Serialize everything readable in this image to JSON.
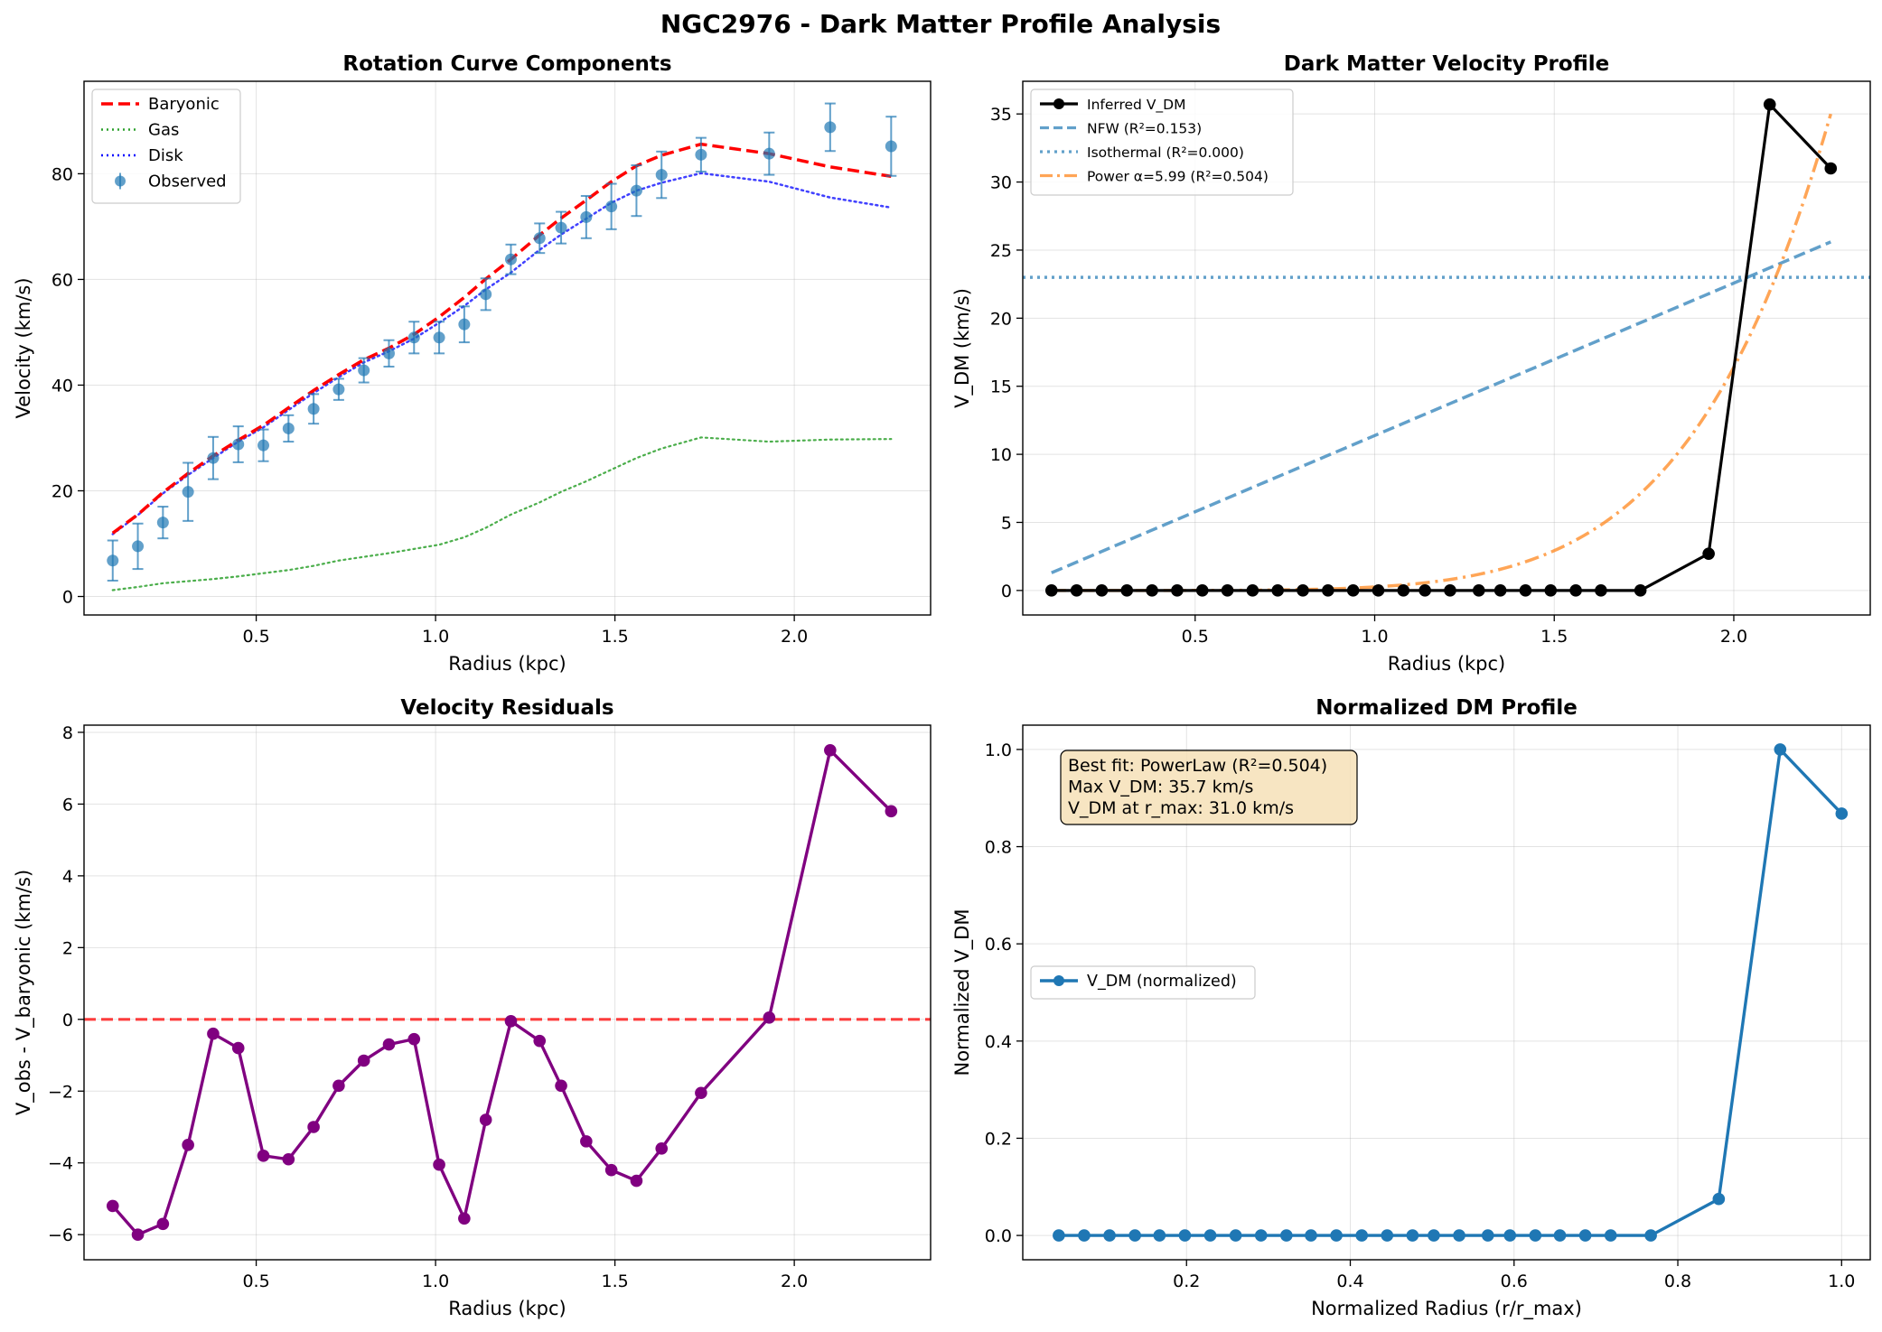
{
  "figure_title": "NGC2976 - Dark Matter Profile Analysis",
  "colors": {
    "observed": "#1f77b4",
    "baryonic": "#ff0000",
    "gas": "#2ca02c",
    "disk": "#0000ff",
    "inferred": "#000000",
    "nfw": "#1f77b4",
    "isothermal": "#1f77b4",
    "power": "#ff7f0e",
    "residual": "#800080",
    "zero_line": "#ff0000",
    "normalized": "#1f77b4",
    "annotation_bg": "#f5deb3"
  },
  "chart_data": [
    {
      "id": "rotation",
      "type": "line",
      "title": "Rotation Curve Components",
      "xlabel": "Radius (kpc)",
      "ylabel": "Velocity (km/s)",
      "xlim": [
        0.02,
        2.38
      ],
      "ylim": [
        -3.5,
        97.5
      ],
      "xticks": [
        0.5,
        1.0,
        1.5,
        2.0
      ],
      "xtick_labels": [
        "0.5",
        "1.0",
        "1.5",
        "2.0"
      ],
      "yticks": [
        0,
        20,
        40,
        60,
        80
      ],
      "ytick_labels": [
        "0",
        "20",
        "40",
        "60",
        "80"
      ],
      "grid": true,
      "legend_position": "upper-left",
      "legend": [
        "Baryonic",
        "Gas",
        "Disk",
        "Observed"
      ],
      "x": [
        0.1,
        0.17,
        0.24,
        0.31,
        0.38,
        0.45,
        0.52,
        0.59,
        0.66,
        0.73,
        0.8,
        0.87,
        0.94,
        1.01,
        1.08,
        1.14,
        1.21,
        1.29,
        1.35,
        1.42,
        1.49,
        1.56,
        1.63,
        1.74,
        1.93,
        2.1,
        2.27
      ],
      "series": [
        {
          "name": "Observed",
          "style": "errorbar",
          "values": [
            6.8,
            9.5,
            14.0,
            19.8,
            26.2,
            28.8,
            28.6,
            31.8,
            35.5,
            39.2,
            42.8,
            46.0,
            49.0,
            49.0,
            51.5,
            57.2,
            63.8,
            67.8,
            69.8,
            71.8,
            73.8,
            76.8,
            79.8,
            83.6,
            83.8,
            88.8,
            85.2
          ],
          "errors": [
            3.8,
            4.3,
            3.0,
            5.5,
            4.0,
            3.4,
            3.0,
            2.5,
            2.8,
            2.0,
            2.3,
            2.5,
            3.0,
            3.0,
            3.4,
            3.0,
            2.8,
            2.8,
            3.0,
            4.0,
            4.3,
            4.8,
            4.4,
            3.2,
            4.0,
            4.5,
            5.6
          ]
        },
        {
          "name": "Baryonic",
          "style": "dashed",
          "values": [
            12.0,
            15.5,
            19.7,
            23.3,
            26.6,
            29.6,
            32.4,
            35.7,
            39.0,
            42.0,
            44.8,
            47.0,
            49.6,
            52.9,
            56.6,
            60.1,
            63.8,
            68.4,
            71.6,
            75.0,
            78.5,
            81.5,
            83.5,
            85.6,
            83.8,
            81.3,
            79.5
          ]
        },
        {
          "name": "Gas",
          "style": "dotted",
          "values": [
            1.2,
            1.8,
            2.5,
            2.9,
            3.3,
            3.8,
            4.4,
            5.0,
            5.8,
            6.8,
            7.5,
            8.2,
            9.0,
            9.8,
            11.2,
            13.0,
            15.5,
            17.8,
            19.8,
            21.8,
            24.0,
            26.2,
            28.0,
            30.1,
            29.3,
            29.7,
            29.8
          ]
        },
        {
          "name": "Disk",
          "style": "dotted",
          "values": [
            11.8,
            15.4,
            19.5,
            23.0,
            26.2,
            29.3,
            32.0,
            35.3,
            38.5,
            41.5,
            44.3,
            46.4,
            48.8,
            51.8,
            55.0,
            58.1,
            61.3,
            65.6,
            68.5,
            71.5,
            74.5,
            76.8,
            78.3,
            80.1,
            78.5,
            75.5,
            73.6
          ]
        }
      ]
    },
    {
      "id": "dm_velocity",
      "type": "line",
      "title": "Dark Matter Velocity Profile",
      "xlabel": "Radius (kpc)",
      "ylabel": "V_DM (km/s)",
      "xlim": [
        0.02,
        2.38
      ],
      "ylim": [
        -1.8,
        37.4
      ],
      "xticks": [
        0.5,
        1.0,
        1.5,
        2.0
      ],
      "xtick_labels": [
        "0.5",
        "1.0",
        "1.5",
        "2.0"
      ],
      "yticks": [
        0,
        5,
        10,
        15,
        20,
        25,
        30,
        35
      ],
      "ytick_labels": [
        "0",
        "5",
        "10",
        "15",
        "20",
        "25",
        "30",
        "35"
      ],
      "grid": true,
      "legend_position": "upper-left",
      "legend": [
        "Inferred V_DM",
        "NFW (R²=0.153)",
        "Isothermal (R²=0.000)",
        "Power α=5.99 (R²=0.504)"
      ],
      "x": [
        0.1,
        0.17,
        0.24,
        0.31,
        0.38,
        0.45,
        0.52,
        0.59,
        0.66,
        0.73,
        0.8,
        0.87,
        0.94,
        1.01,
        1.08,
        1.14,
        1.21,
        1.29,
        1.35,
        1.42,
        1.49,
        1.56,
        1.63,
        1.74,
        1.93,
        2.1,
        2.27
      ],
      "series": [
        {
          "name": "Inferred V_DM",
          "style": "solid-markers",
          "values": [
            0,
            0,
            0,
            0,
            0,
            0,
            0,
            0,
            0,
            0,
            0,
            0,
            0,
            0,
            0,
            0,
            0,
            0,
            0,
            0,
            0,
            0,
            0,
            0,
            2.7,
            35.7,
            31.0
          ]
        },
        {
          "name": "NFW (R²=0.153)",
          "style": "dashed",
          "line": {
            "x": [
              0.1,
              2.27
            ],
            "y": [
              1.3,
              25.6
            ]
          }
        },
        {
          "name": "Isothermal (R²=0.000)",
          "style": "dotted",
          "constant": 23.0
        },
        {
          "name": "Power α=5.99 (R²=0.504)",
          "style": "dashdot",
          "power": {
            "amplitude": 35.0,
            "x_ref": 2.27,
            "alpha": 5.99,
            "x_start": 0.1,
            "x_end": 2.27
          }
        }
      ]
    },
    {
      "id": "residuals",
      "type": "line",
      "title": "Velocity Residuals",
      "xlabel": "Radius (kpc)",
      "ylabel": "V_obs - V_baryonic (km/s)",
      "xlim": [
        0.02,
        2.38
      ],
      "ylim": [
        -6.7,
        8.2
      ],
      "xticks": [
        0.5,
        1.0,
        1.5,
        2.0
      ],
      "xtick_labels": [
        "0.5",
        "1.0",
        "1.5",
        "2.0"
      ],
      "yticks": [
        -6,
        -4,
        -2,
        0,
        2,
        4,
        6,
        8
      ],
      "ytick_labels": [
        "−6",
        "−4",
        "−2",
        "0",
        "2",
        "4",
        "6",
        "8"
      ],
      "grid": true,
      "reference_line": 0,
      "x": [
        0.1,
        0.17,
        0.24,
        0.31,
        0.38,
        0.45,
        0.52,
        0.59,
        0.66,
        0.73,
        0.8,
        0.87,
        0.94,
        1.01,
        1.08,
        1.14,
        1.21,
        1.29,
        1.35,
        1.42,
        1.49,
        1.56,
        1.63,
        1.74,
        1.93,
        2.1,
        2.27
      ],
      "series": [
        {
          "name": "",
          "style": "solid-markers",
          "values": [
            -5.2,
            -6.0,
            -5.7,
            -3.5,
            -0.4,
            -0.8,
            -3.8,
            -3.9,
            -3.0,
            -1.85,
            -1.15,
            -0.7,
            -0.55,
            -4.05,
            -5.55,
            -2.8,
            -0.05,
            -0.6,
            -1.85,
            -3.4,
            -4.2,
            -4.5,
            -3.6,
            -2.05,
            0.05,
            7.5,
            5.8
          ]
        }
      ]
    },
    {
      "id": "normalized",
      "type": "line",
      "title": "Normalized DM Profile",
      "xlabel": "Normalized Radius (r/r_max)",
      "ylabel": "Normalized V_DM",
      "xlim": [
        0.0,
        1.035
      ],
      "ylim": [
        -0.05,
        1.05
      ],
      "xticks": [
        0.2,
        0.4,
        0.6,
        0.8,
        1.0
      ],
      "xtick_labels": [
        "0.2",
        "0.4",
        "0.6",
        "0.8",
        "1.0"
      ],
      "yticks": [
        0.0,
        0.2,
        0.4,
        0.6,
        0.8,
        1.0
      ],
      "ytick_labels": [
        "0.0",
        "0.2",
        "0.4",
        "0.6",
        "0.8",
        "1.0"
      ],
      "grid": true,
      "legend_position": "center-left",
      "legend": [
        "V_DM (normalized)"
      ],
      "annotation": [
        "Best fit: PowerLaw (R²=0.504)",
        "Max V_DM: 35.7 km/s",
        "V_DM at r_max: 31.0 km/s"
      ],
      "x": [
        0.044,
        0.075,
        0.106,
        0.137,
        0.167,
        0.198,
        0.229,
        0.26,
        0.291,
        0.322,
        0.352,
        0.383,
        0.414,
        0.445,
        0.476,
        0.502,
        0.533,
        0.568,
        0.595,
        0.626,
        0.656,
        0.687,
        0.718,
        0.767,
        0.85,
        0.925,
        1.0
      ],
      "series": [
        {
          "name": "V_DM (normalized)",
          "style": "solid-markers",
          "values": [
            0,
            0,
            0,
            0,
            0,
            0,
            0,
            0,
            0,
            0,
            0,
            0,
            0,
            0,
            0,
            0,
            0,
            0,
            0,
            0,
            0,
            0,
            0,
            0,
            0.075,
            1.0,
            0.868
          ]
        }
      ]
    }
  ]
}
